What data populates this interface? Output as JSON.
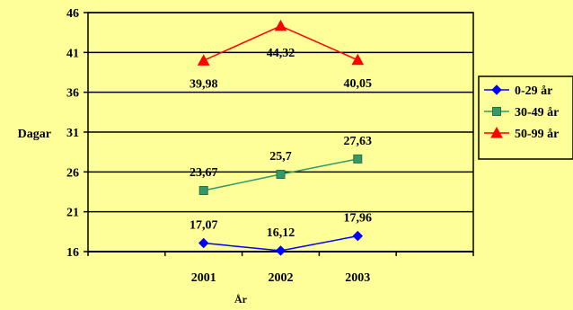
{
  "chart_data": {
    "type": "line",
    "title": "",
    "xlabel": "År",
    "ylabel": "Dagar",
    "ylim": [
      16,
      46
    ],
    "yticks": [
      16,
      21,
      26,
      31,
      36,
      41,
      46
    ],
    "categories": [
      "2001",
      "2002",
      "2003"
    ],
    "grid": true,
    "legend_position": "right",
    "series": [
      {
        "name": "0-29 år",
        "values": [
          17.07,
          16.12,
          17.96
        ],
        "labels": [
          "17,07",
          "16,12",
          "17,96"
        ],
        "color": "#0000FF",
        "marker": "diamond"
      },
      {
        "name": "30-49 år",
        "values": [
          23.67,
          25.7,
          27.63
        ],
        "labels": [
          "23,67",
          "25,7",
          "27,63"
        ],
        "color": "#339966",
        "marker": "square"
      },
      {
        "name": "50-99 år",
        "values": [
          39.98,
          44.32,
          40.05
        ],
        "labels": [
          "39,98",
          "44,32",
          "40,05"
        ],
        "color": "#FF0000",
        "marker": "triangle"
      }
    ]
  }
}
